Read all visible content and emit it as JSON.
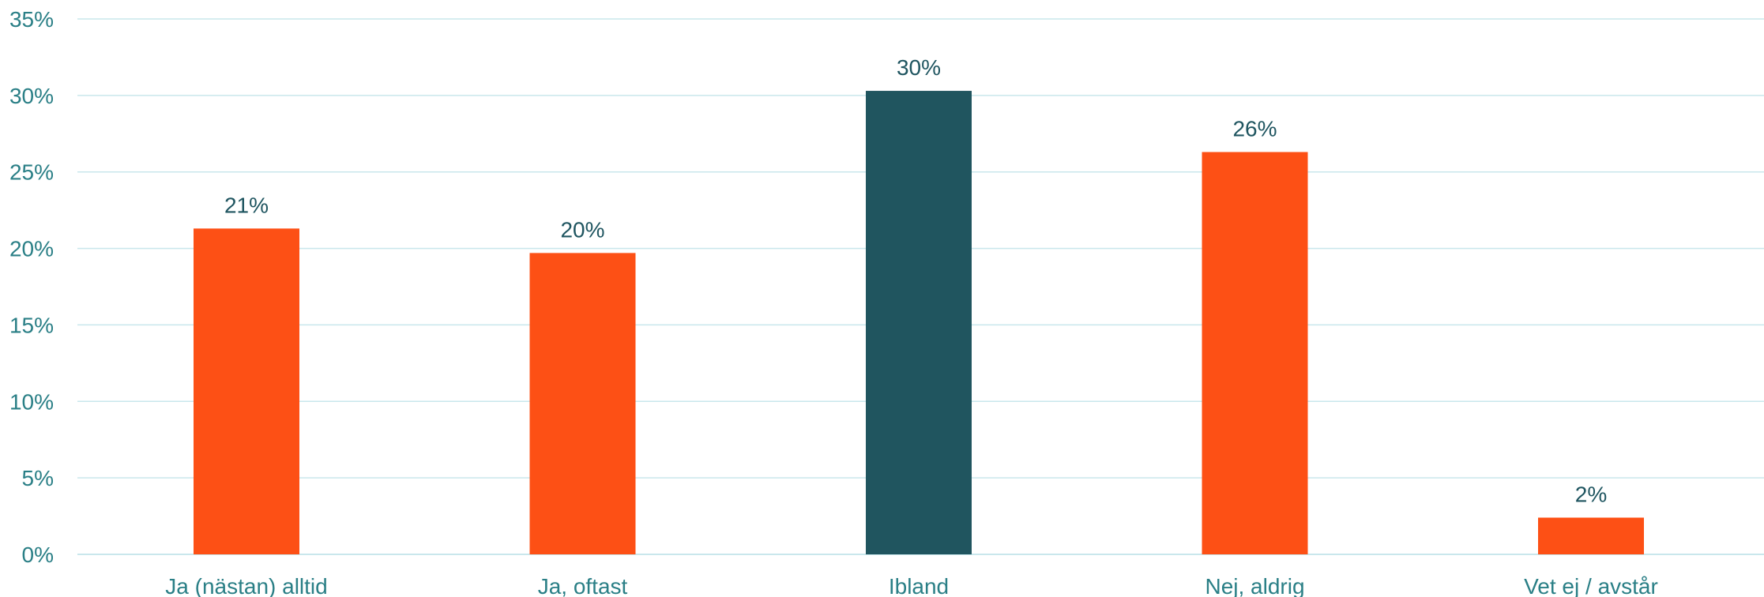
{
  "chart_data": {
    "type": "bar",
    "title": "",
    "xlabel": "",
    "ylabel": "",
    "categories": [
      "Ja (nästan) alltid",
      "Ja, oftast",
      "Ibland",
      "Nej, aldrig",
      "Vet ej / avstår"
    ],
    "values": [
      21.3,
      19.7,
      30.3,
      26.3,
      2.4
    ],
    "data_labels": [
      "21%",
      "20%",
      "30%",
      "26%",
      "2%"
    ],
    "bar_colors": [
      "#fd5015",
      "#fd5015",
      "#20555f",
      "#fd5015",
      "#fd5015"
    ],
    "ylim": [
      0,
      35
    ],
    "yticks": [
      0,
      5,
      10,
      15,
      20,
      25,
      30,
      35
    ],
    "ytick_labels": [
      "0%",
      "5%",
      "10%",
      "15%",
      "20%",
      "25%",
      "30%",
      "35%"
    ],
    "grid": true,
    "legend": "none"
  },
  "colors": {
    "highlight": "#20555f",
    "accent": "#fd5015",
    "grid": "#c9e7ec",
    "text": "#2a7f86"
  }
}
